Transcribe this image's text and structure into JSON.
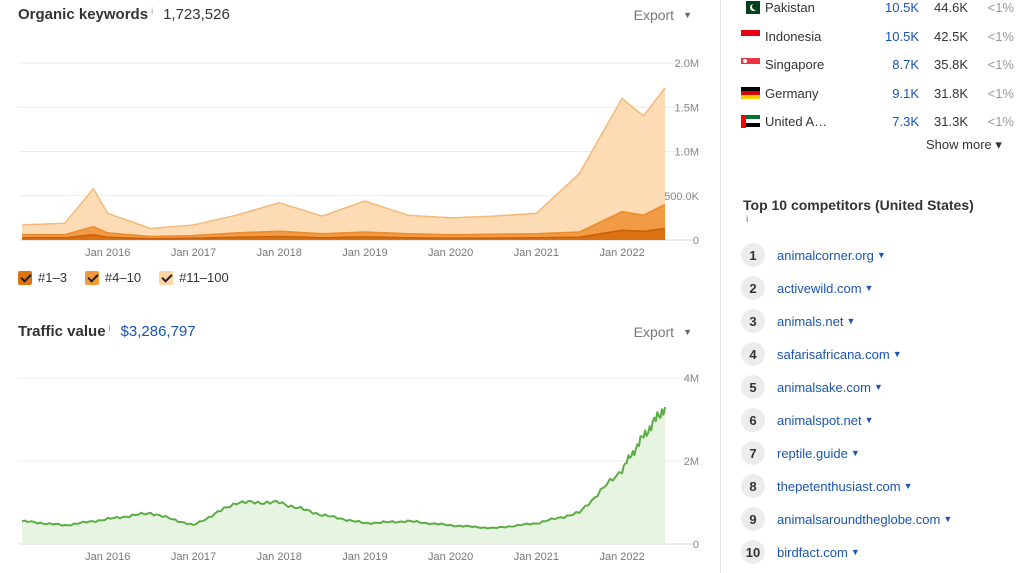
{
  "organic": {
    "title": "Organic keywords",
    "info": "i",
    "value": "1,723,526",
    "export_label": "Export",
    "y_ticks": [
      "2.0M",
      "1.5M",
      "1.0M",
      "500.0K",
      "0"
    ],
    "x_ticks": [
      "Jan 2016",
      "Jan 2017",
      "Jan 2018",
      "Jan 2019",
      "Jan 2020",
      "Jan 2021",
      "Jan 2022"
    ],
    "legend": [
      {
        "label": "#1–3",
        "color": "#e0750f"
      },
      {
        "label": "#4–10",
        "color": "#f09a3c"
      },
      {
        "label": "#11–100",
        "color": "#fbd5a8"
      }
    ]
  },
  "traffic": {
    "title": "Traffic value",
    "info": "i",
    "value": "$3,286,797",
    "export_label": "Export",
    "y_ticks": [
      "4M",
      "2M",
      "0"
    ],
    "x_ticks": [
      "Jan 2016",
      "Jan 2017",
      "Jan 2018",
      "Jan 2019",
      "Jan 2020",
      "Jan 2021",
      "Jan 2022"
    ],
    "line_color": "#5cad45",
    "fill_color": "#e8f4e2"
  },
  "chart_data": [
    {
      "type": "area",
      "title": "Organic keywords",
      "x": [
        "Jan 2015",
        "Jul 2015",
        "Nov 2015",
        "Jan 2016",
        "Jul 2016",
        "Jan 2017",
        "Jul 2017",
        "Jan 2018",
        "Jul 2018",
        "Jan 2019",
        "Jul 2019",
        "Jan 2020",
        "Jul 2020",
        "Jan 2021",
        "Jul 2021",
        "Jan 2022",
        "Apr 2022",
        "Jul 2022"
      ],
      "series": [
        {
          "name": "#11–100",
          "values": [
            170000,
            190000,
            580000,
            300000,
            130000,
            170000,
            280000,
            420000,
            270000,
            440000,
            280000,
            250000,
            270000,
            300000,
            750000,
            1600000,
            1400000,
            1720000
          ]
        },
        {
          "name": "#4–10",
          "values": [
            60000,
            60000,
            150000,
            80000,
            40000,
            50000,
            80000,
            100000,
            70000,
            90000,
            70000,
            60000,
            65000,
            70000,
            90000,
            320000,
            280000,
            400000
          ]
        },
        {
          "name": "#1–3",
          "values": [
            25000,
            25000,
            60000,
            30000,
            15000,
            20000,
            30000,
            40000,
            25000,
            35000,
            25000,
            20000,
            22000,
            25000,
            30000,
            110000,
            100000,
            130000
          ]
        }
      ],
      "ylim": [
        0,
        2000000
      ],
      "grid": true
    },
    {
      "type": "line",
      "title": "Traffic value",
      "x": [
        "Jan 2015",
        "Jul 2015",
        "Jan 2016",
        "Jul 2016",
        "Jan 2017",
        "Jul 2017",
        "Jan 2018",
        "Jul 2018",
        "Jan 2019",
        "Jul 2019",
        "Jan 2020",
        "Jul 2020",
        "Jan 2021",
        "Jul 2021",
        "Jan 2022",
        "Apr 2022",
        "Jul 2022"
      ],
      "series": [
        {
          "name": "",
          "values": [
            550000,
            450000,
            600000,
            750000,
            450000,
            1000000,
            1000000,
            700000,
            500000,
            550000,
            450000,
            380000,
            500000,
            750000,
            1800000,
            2600000,
            3300000
          ]
        }
      ],
      "ylim": [
        0,
        4000000
      ],
      "grid": true
    }
  ],
  "countries": [
    {
      "name": "Pakistan",
      "traffic": "10.5K",
      "keywords": "44.6K",
      "share": "<1%",
      "flag": "pk"
    },
    {
      "name": "Indonesia",
      "traffic": "10.5K",
      "keywords": "42.5K",
      "share": "<1%",
      "flag": "id"
    },
    {
      "name": "Singapore",
      "traffic": "8.7K",
      "keywords": "35.8K",
      "share": "<1%",
      "flag": "sg"
    },
    {
      "name": "Germany",
      "traffic": "9.1K",
      "keywords": "31.8K",
      "share": "<1%",
      "flag": "de"
    },
    {
      "name": "United A…",
      "traffic": "7.3K",
      "keywords": "31.3K",
      "share": "<1%",
      "flag": "ae"
    }
  ],
  "show_more": "Show more ▾",
  "competitors": {
    "title": "Top 10 competitors (United States)",
    "info": "i",
    "items": [
      {
        "rank": "1",
        "domain": "animalcorner.org"
      },
      {
        "rank": "2",
        "domain": "activewild.com"
      },
      {
        "rank": "3",
        "domain": "animals.net"
      },
      {
        "rank": "4",
        "domain": "safarisafricana.com"
      },
      {
        "rank": "5",
        "domain": "animalsake.com"
      },
      {
        "rank": "6",
        "domain": "animalspot.net"
      },
      {
        "rank": "7",
        "domain": "reptile.guide"
      },
      {
        "rank": "8",
        "domain": "thepetenthusiast.com"
      },
      {
        "rank": "9",
        "domain": "animalsaroundtheglobe.com"
      },
      {
        "rank": "10",
        "domain": "birdfact.com"
      }
    ]
  }
}
